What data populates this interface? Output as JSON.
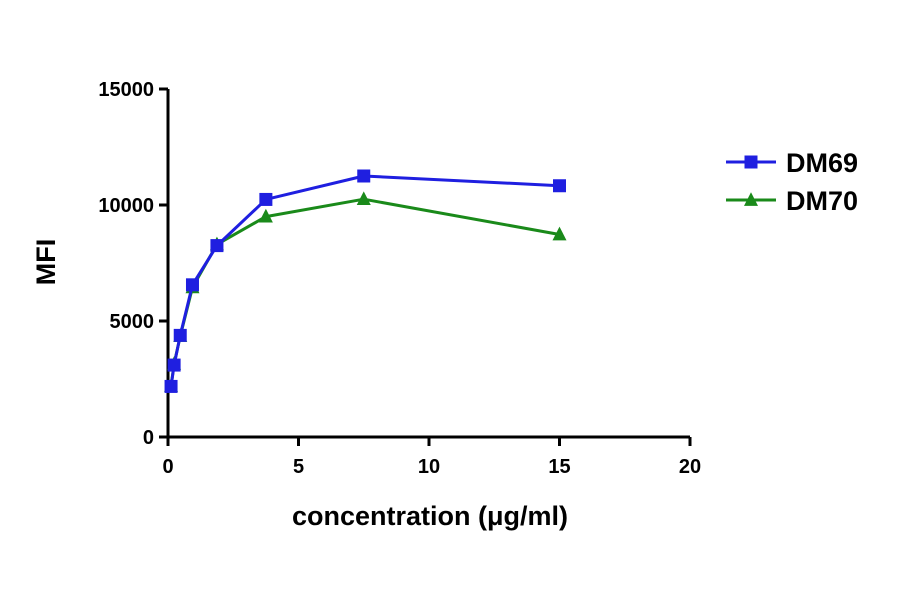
{
  "chart_data": {
    "type": "line",
    "title": "",
    "xlabel": "concentration (μg/ml)",
    "ylabel": "MFI",
    "xlim": [
      0,
      20
    ],
    "ylim": [
      0,
      15000
    ],
    "xticks": [
      0,
      5,
      10,
      15,
      20
    ],
    "yticks": [
      0,
      5000,
      10000,
      15000
    ],
    "xtick_labels": [
      "0",
      "5",
      "10",
      "15",
      "20"
    ],
    "ytick_labels": [
      "0",
      "5000",
      "10000",
      "15000"
    ],
    "grid": false,
    "legend_position": "right",
    "series": [
      {
        "name": "DM69",
        "color": "#1f1fe0",
        "marker": "square",
        "x": [
          0.117,
          0.234,
          0.469,
          0.938,
          1.875,
          3.75,
          7.5,
          15
        ],
        "y": [
          2180,
          3100,
          4380,
          6560,
          8250,
          10240,
          11250,
          10830
        ]
      },
      {
        "name": "DM70",
        "color": "#1a8a1a",
        "marker": "triangle",
        "x": [
          0.117,
          0.234,
          0.469,
          0.938,
          1.875,
          3.75,
          7.5,
          15
        ],
        "y": [
          2200,
          3150,
          4350,
          6450,
          8300,
          9500,
          10250,
          8730
        ]
      }
    ]
  }
}
